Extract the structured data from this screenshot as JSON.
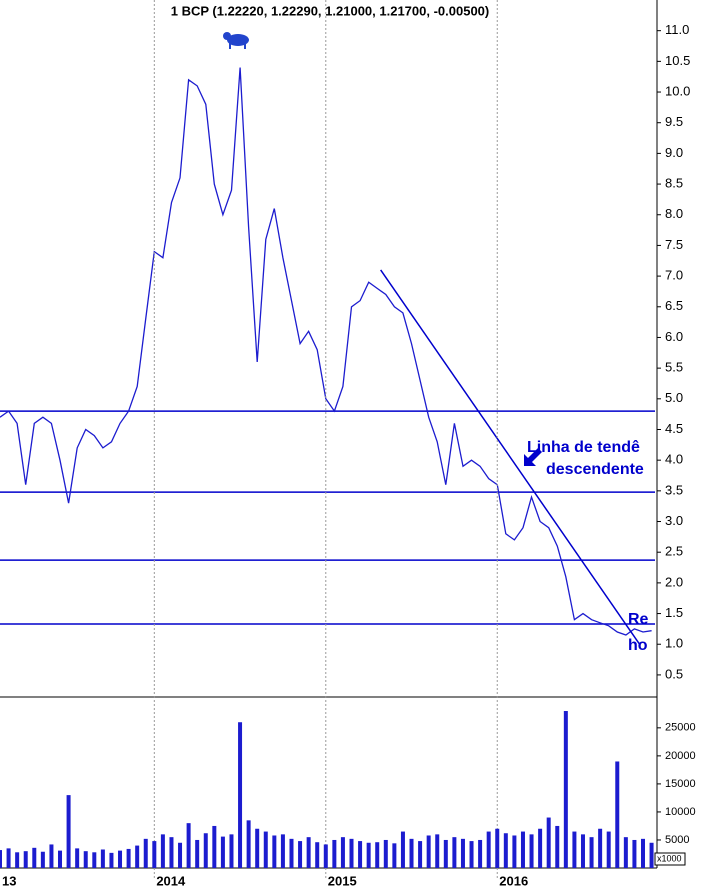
{
  "chart_data": [
    {
      "type": "line",
      "title": "1 BCP (1.22220, 1.22290, 1.21000, 1.21700, -0.00500)",
      "color": "#1c1ccf",
      "x": [
        2013.1,
        2013.15,
        2013.2,
        2013.25,
        2013.3,
        2013.35,
        2013.4,
        2013.45,
        2013.5,
        2013.55,
        2013.6,
        2013.65,
        2013.7,
        2013.75,
        2013.8,
        2013.85,
        2013.9,
        2013.95,
        2014,
        2014.05,
        2014.1,
        2014.15,
        2014.2,
        2014.25,
        2014.3,
        2014.35,
        2014.4,
        2014.45,
        2014.5,
        2014.55,
        2014.6,
        2014.65,
        2014.7,
        2014.75,
        2014.8,
        2014.85,
        2014.9,
        2014.95,
        2015,
        2015.05,
        2015.1,
        2015.15,
        2015.2,
        2015.25,
        2015.3,
        2015.35,
        2015.4,
        2015.45,
        2015.5,
        2015.55,
        2015.6,
        2015.65,
        2015.7,
        2015.75,
        2015.8,
        2015.85,
        2015.9,
        2015.95,
        2016,
        2016.05,
        2016.1,
        2016.15,
        2016.2,
        2016.25,
        2016.3,
        2016.35,
        2016.4,
        2016.45,
        2016.5,
        2016.55,
        2016.6,
        2016.65,
        2016.7,
        2016.75,
        2016.8,
        2016.85,
        2016.9
      ],
      "values": [
        4.7,
        4.8,
        4.6,
        3.6,
        4.6,
        4.7,
        4.6,
        4.0,
        3.3,
        4.2,
        4.5,
        4.4,
        4.2,
        4.3,
        4.6,
        4.8,
        5.2,
        6.3,
        7.4,
        7.3,
        8.2,
        8.6,
        10.2,
        10.1,
        9.8,
        8.5,
        8.0,
        8.4,
        10.4,
        7.8,
        5.6,
        7.6,
        8.1,
        7.3,
        6.6,
        5.9,
        6.1,
        5.8,
        5.0,
        4.8,
        5.2,
        6.5,
        6.6,
        6.9,
        6.8,
        6.7,
        6.5,
        6.4,
        5.9,
        5.3,
        4.7,
        4.3,
        3.6,
        4.6,
        3.9,
        4.0,
        3.9,
        3.7,
        3.6,
        2.8,
        2.7,
        2.9,
        3.4,
        3.0,
        2.9,
        2.6,
        2.1,
        1.4,
        1.5,
        1.4,
        1.35,
        1.3,
        1.2,
        1.15,
        1.25,
        1.2,
        1.22
      ],
      "xlim": [
        2013.1,
        2016.92
      ],
      "ylim": [
        0.14,
        11.5
      ],
      "yticks": [
        0.5,
        {
          "value": 1,
          "label": "1.0"
        },
        1.5,
        {
          "value": 2,
          "label": "2.0"
        },
        2.5,
        {
          "value": 3,
          "label": "3.0"
        },
        3.5,
        {
          "value": 4,
          "label": "4.0"
        },
        4.5,
        {
          "value": 5,
          "label": "5.0"
        },
        5.5,
        {
          "value": 6,
          "label": "6.0"
        },
        6.5,
        {
          "value": 7,
          "label": "7.0"
        },
        7.5,
        {
          "value": 8,
          "label": "8.0"
        },
        8.5,
        {
          "value": 9,
          "label": "9.0"
        },
        9.5,
        {
          "value": 10,
          "label": "10.0"
        },
        10.5,
        {
          "value": 11,
          "label": "11.0"
        }
      ],
      "hlines": [
        4.8,
        3.48,
        2.37,
        1.33
      ],
      "line_color": "#0000cc",
      "trendline": {
        "x": [
          2015.32,
          2016.83
        ],
        "y": [
          7.1,
          1.0
        ]
      },
      "annotations": [
        "Linha de tendê",
        "descendente",
        "Re",
        "ho"
      ]
    },
    {
      "type": "bar",
      "color": "#1c1ccf",
      "unit_label": "x1000",
      "x": [
        2013.1,
        2013.15,
        2013.2,
        2013.25,
        2013.3,
        2013.35,
        2013.4,
        2013.45,
        2013.5,
        2013.55,
        2013.6,
        2013.65,
        2013.7,
        2013.75,
        2013.8,
        2013.85,
        2013.9,
        2013.95,
        2014,
        2014.05,
        2014.1,
        2014.15,
        2014.2,
        2014.25,
        2014.3,
        2014.35,
        2014.4,
        2014.45,
        2014.5,
        2014.55,
        2014.6,
        2014.65,
        2014.7,
        2014.75,
        2014.8,
        2014.85,
        2014.9,
        2014.95,
        2015,
        2015.05,
        2015.1,
        2015.15,
        2015.2,
        2015.25,
        2015.3,
        2015.35,
        2015.4,
        2015.45,
        2015.5,
        2015.55,
        2015.6,
        2015.65,
        2015.7,
        2015.75,
        2015.8,
        2015.85,
        2015.9,
        2015.95,
        2016,
        2016.05,
        2016.1,
        2016.15,
        2016.2,
        2016.25,
        2016.3,
        2016.35,
        2016.4,
        2016.45,
        2016.5,
        2016.55,
        2016.6,
        2016.65,
        2016.7,
        2016.75,
        2016.8,
        2016.85,
        2016.9
      ],
      "values": [
        3200,
        3500,
        2800,
        3000,
        3600,
        2900,
        4200,
        3100,
        13000,
        3500,
        3000,
        2800,
        3300,
        2700,
        3100,
        3400,
        4000,
        5200,
        4800,
        6000,
        5500,
        4500,
        8000,
        5000,
        6200,
        7500,
        5600,
        6000,
        26000,
        8500,
        7000,
        6500,
        5800,
        6000,
        5200,
        4800,
        5500,
        4600,
        4200,
        5000,
        5500,
        5200,
        4800,
        4500,
        4600,
        5000,
        4400,
        6500,
        5200,
        4800,
        5800,
        6000,
        5000,
        5500,
        5200,
        4800,
        5000,
        6500,
        7000,
        6200,
        5800,
        6500,
        6000,
        7000,
        9000,
        7500,
        28000,
        6500,
        6000,
        5500,
        7000,
        6500,
        19000,
        5500,
        5000,
        5200,
        4500
      ],
      "xlim": [
        2013.1,
        2016.92
      ],
      "ylim": [
        0,
        30500
      ],
      "yticks": [
        5000,
        10000,
        15000,
        20000,
        25000
      ],
      "xticks": [
        {
          "value": 2013,
          "label": "13"
        },
        2014,
        2015,
        2016
      ]
    }
  ]
}
